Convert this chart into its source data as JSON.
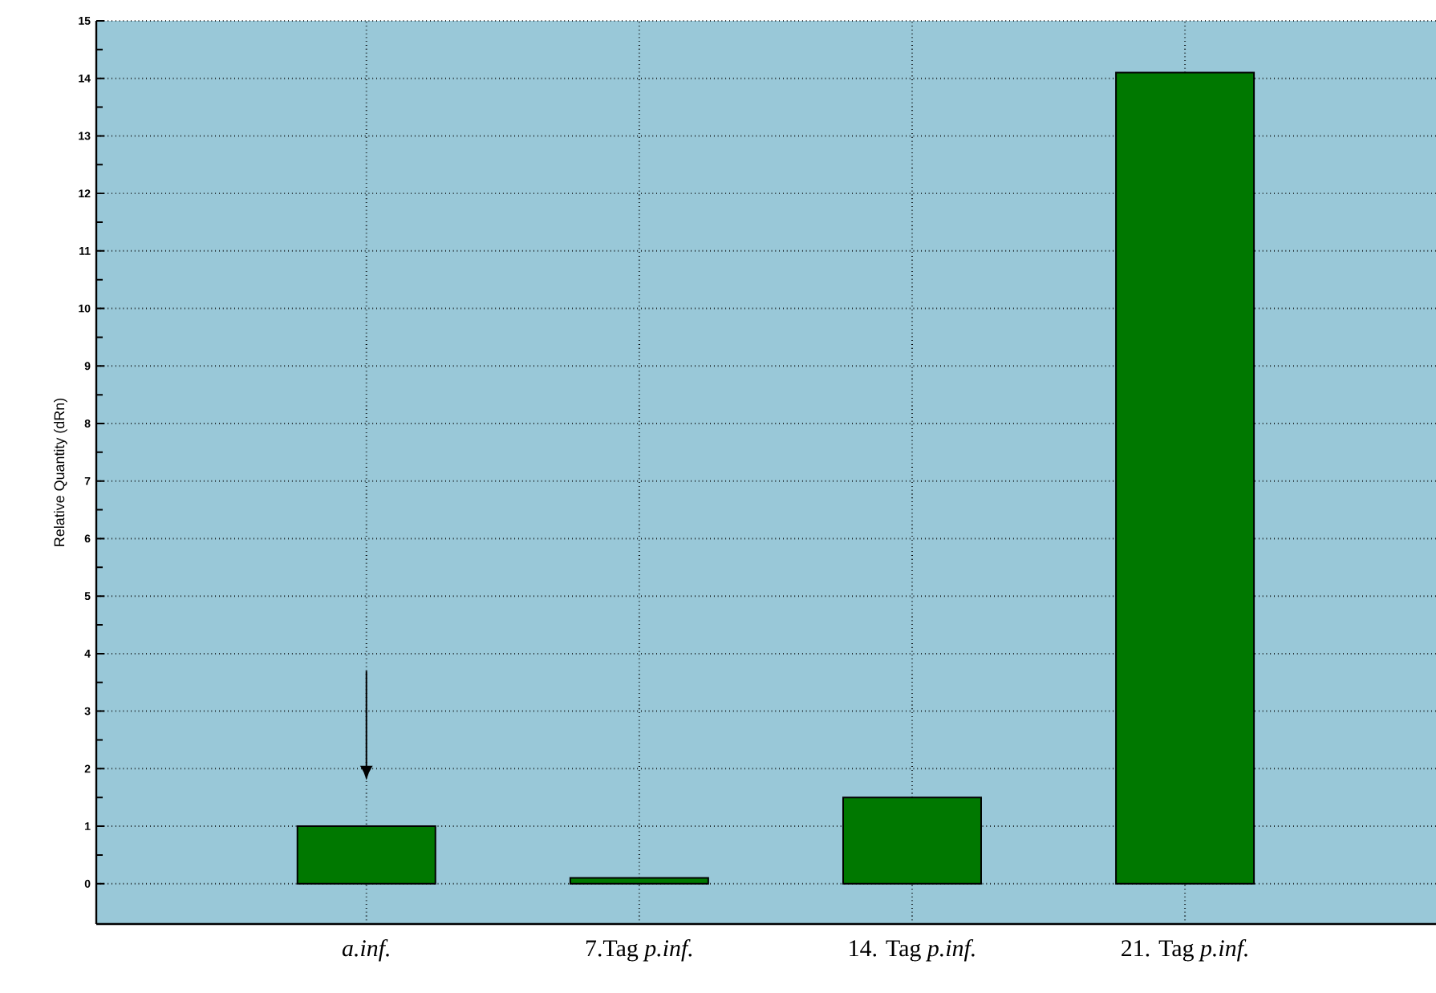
{
  "chart_data": {
    "type": "bar",
    "ylabel": "Relative Quantity (dRn)",
    "categories": [
      "*a.inf.*",
      "7.Tag *p.inf.*",
      "14. Tag *p.inf.*",
      "21. Tag *p.inf.*"
    ],
    "values": [
      1.0,
      0.1,
      1.5,
      14.1
    ],
    "color": "#007800",
    "ylim": [
      -0.7,
      15
    ],
    "yticks": [
      0,
      1,
      2,
      3,
      4,
      5,
      6,
      7,
      8,
      9,
      10,
      11,
      12,
      13,
      14,
      15
    ],
    "grid": true
  }
}
